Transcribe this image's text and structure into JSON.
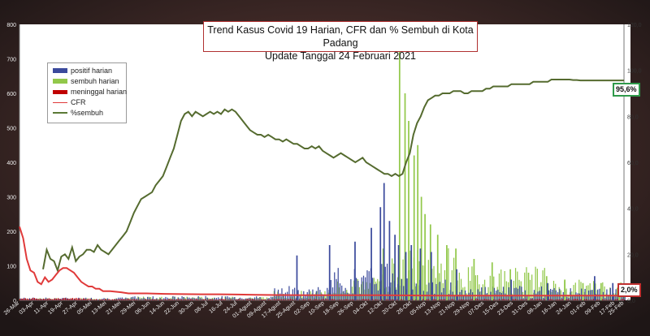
{
  "title": {
    "line1": "Trend Kasus Covid 19 Harian, CFR dan % Sembuh di Kota Padang",
    "line2": "Update Tanggal 24 Februari 2021"
  },
  "legend": [
    {
      "label": "positif harian",
      "color": "#3b4a9c"
    },
    {
      "label": "sembuh harian",
      "color": "#92c84a"
    },
    {
      "label": "meninggal harian",
      "color": "#c00000"
    },
    {
      "label": "CFR",
      "color": "#e03a3a"
    },
    {
      "label": "%sembuh",
      "color": "#5b7a36"
    }
  ],
  "callouts": {
    "sembuh_last": "95,6%",
    "cfr_last": "2,0%"
  },
  "colors": {
    "positif": "#3b4a9c",
    "sembuh": "#92c84a",
    "meninggal": "#c00000",
    "cfr": "#e03a3a",
    "pct_sembuh": "#556b2f",
    "callout_sembuh_border": "#2f9a4a",
    "callout_cfr_border": "#c03030"
  },
  "chart_data": {
    "type": "bar",
    "title": "Trend Kasus Covid 19 Harian, CFR dan % Sembuh di Kota Padang",
    "subtitle": "Update Tanggal 24 Februari 2021",
    "x_tick_labels": [
      "26-Mar",
      "03-Apr",
      "11-Apr",
      "19-Apr",
      "27-Apr",
      "05-Mei",
      "13-Mei",
      "21-Mei",
      "29-Mei",
      "06-Jun",
      "14-Jun",
      "22-Jun",
      "30-Jun",
      "08-Jul",
      "16-Jul",
      "24-Jul",
      "01-Agust",
      "09-Agust",
      "17-Agust",
      "25-Agust",
      "02-Sep",
      "10-Sep",
      "18-Sep",
      "26-Sep",
      "04-Okt",
      "12-Okt",
      "20-Okt",
      "28-Okt",
      "05-Nop",
      "13-Nop",
      "21-Nop",
      "29-Nop",
      "07-Des",
      "15-Des",
      "23-Des",
      "31-Des",
      "08-Jan",
      "16-Jan",
      "24-Jan",
      "01-Feb",
      "09-Feb",
      "17-Feb",
      "25-Feb"
    ],
    "y_left": {
      "min": 0,
      "max": 800,
      "ticks": [
        0,
        100,
        200,
        300,
        400,
        500,
        600,
        700,
        800
      ]
    },
    "y_right": {
      "min": 0,
      "max": 120,
      "ticks": [
        "0,0",
        "20,0",
        "40,0",
        "60,0",
        "80,0",
        "100,0",
        "120,0"
      ]
    },
    "grid": false,
    "legend_position": "top-left",
    "pct_sembuh_series": {
      "name": "%sembuh",
      "axis": "right",
      "points": [
        [
          13,
          13.5
        ],
        [
          15,
          22
        ],
        [
          17,
          18
        ],
        [
          19,
          17
        ],
        [
          21,
          13
        ],
        [
          23,
          19
        ],
        [
          25,
          20
        ],
        [
          27,
          18
        ],
        [
          29,
          23
        ],
        [
          31,
          17
        ],
        [
          33,
          19
        ],
        [
          35,
          20
        ],
        [
          37,
          22
        ],
        [
          39,
          22
        ],
        [
          41,
          21
        ],
        [
          43,
          24
        ],
        [
          45,
          22
        ],
        [
          47,
          21
        ],
        [
          49,
          20
        ],
        [
          51,
          22
        ],
        [
          53,
          24
        ],
        [
          55,
          26
        ],
        [
          57,
          28
        ],
        [
          59,
          30
        ],
        [
          61,
          34
        ],
        [
          63,
          38
        ],
        [
          65,
          41
        ],
        [
          67,
          44
        ],
        [
          69,
          45
        ],
        [
          71,
          46
        ],
        [
          73,
          47
        ],
        [
          75,
          50
        ],
        [
          77,
          52
        ],
        [
          79,
          54
        ],
        [
          81,
          58
        ],
        [
          83,
          62
        ],
        [
          85,
          66
        ],
        [
          87,
          72
        ],
        [
          89,
          78
        ],
        [
          91,
          81
        ],
        [
          93,
          82
        ],
        [
          95,
          80
        ],
        [
          97,
          82
        ],
        [
          99,
          81
        ],
        [
          101,
          80
        ],
        [
          103,
          81
        ],
        [
          105,
          82
        ],
        [
          107,
          81
        ],
        [
          109,
          82
        ],
        [
          111,
          81
        ],
        [
          113,
          83
        ],
        [
          115,
          82
        ],
        [
          117,
          83
        ],
        [
          119,
          82
        ],
        [
          121,
          80
        ],
        [
          123,
          78
        ],
        [
          125,
          76
        ],
        [
          127,
          74
        ],
        [
          129,
          73
        ],
        [
          131,
          72
        ],
        [
          133,
          72
        ],
        [
          135,
          71
        ],
        [
          137,
          72
        ],
        [
          139,
          71
        ],
        [
          141,
          70
        ],
        [
          143,
          70
        ],
        [
          145,
          69
        ],
        [
          147,
          70
        ],
        [
          149,
          69
        ],
        [
          151,
          68
        ],
        [
          153,
          68
        ],
        [
          155,
          67
        ],
        [
          157,
          66
        ],
        [
          159,
          66
        ],
        [
          161,
          67
        ],
        [
          163,
          66
        ],
        [
          165,
          67
        ],
        [
          167,
          65
        ],
        [
          169,
          64
        ],
        [
          171,
          63
        ],
        [
          173,
          62
        ],
        [
          175,
          63
        ],
        [
          177,
          64
        ],
        [
          179,
          63
        ],
        [
          181,
          62
        ],
        [
          183,
          61
        ],
        [
          185,
          60
        ],
        [
          187,
          61
        ],
        [
          189,
          62
        ],
        [
          191,
          60
        ],
        [
          193,
          59
        ],
        [
          195,
          58
        ],
        [
          197,
          57
        ],
        [
          199,
          56
        ],
        [
          201,
          55
        ],
        [
          203,
          55
        ],
        [
          205,
          54
        ],
        [
          207,
          55
        ],
        [
          209,
          54
        ],
        [
          211,
          55
        ],
        [
          213,
          60
        ],
        [
          215,
          64
        ],
        [
          217,
          72
        ],
        [
          219,
          77
        ],
        [
          221,
          80
        ],
        [
          223,
          84
        ],
        [
          225,
          87
        ],
        [
          227,
          88
        ],
        [
          229,
          89
        ],
        [
          231,
          89
        ],
        [
          233,
          90
        ],
        [
          235,
          90
        ],
        [
          237,
          90
        ],
        [
          239,
          91
        ],
        [
          241,
          91
        ],
        [
          243,
          91
        ],
        [
          245,
          90
        ],
        [
          247,
          90
        ],
        [
          249,
          91
        ],
        [
          251,
          91
        ],
        [
          253,
          91
        ],
        [
          255,
          91
        ],
        [
          257,
          92
        ],
        [
          259,
          92
        ],
        [
          261,
          93
        ],
        [
          263,
          93
        ],
        [
          265,
          93
        ],
        [
          267,
          93
        ],
        [
          269,
          93
        ],
        [
          271,
          94
        ],
        [
          273,
          94
        ],
        [
          275,
          94
        ],
        [
          277,
          94
        ],
        [
          279,
          94
        ],
        [
          281,
          94
        ],
        [
          283,
          95
        ],
        [
          285,
          95
        ],
        [
          287,
          95
        ],
        [
          289,
          95
        ],
        [
          291,
          95
        ],
        [
          293,
          96
        ],
        [
          295,
          96
        ],
        [
          297,
          96
        ],
        [
          299,
          96
        ],
        [
          301,
          96
        ],
        [
          303,
          96
        ],
        [
          305,
          95.8
        ],
        [
          307,
          95.8
        ],
        [
          309,
          95.6
        ],
        [
          311,
          95.6
        ],
        [
          313,
          95.6
        ],
        [
          315,
          95.6
        ],
        [
          317,
          95.6
        ],
        [
          319,
          95.6
        ],
        [
          321,
          95.6
        ],
        [
          323,
          95.6
        ],
        [
          325,
          95.6
        ],
        [
          327,
          95.6
        ],
        [
          329,
          95.6
        ],
        [
          331,
          95.6
        ],
        [
          333,
          95.6
        ]
      ]
    },
    "cfr_series": {
      "name": "CFR",
      "axis": "right",
      "points": [
        [
          0,
          32
        ],
        [
          2,
          27
        ],
        [
          4,
          18
        ],
        [
          6,
          13
        ],
        [
          8,
          12
        ],
        [
          10,
          8
        ],
        [
          12,
          7
        ],
        [
          14,
          10
        ],
        [
          16,
          8
        ],
        [
          18,
          9
        ],
        [
          20,
          11
        ],
        [
          22,
          13
        ],
        [
          24,
          14
        ],
        [
          26,
          14
        ],
        [
          28,
          13
        ],
        [
          30,
          12
        ],
        [
          32,
          10
        ],
        [
          34,
          8
        ],
        [
          36,
          7
        ],
        [
          38,
          6
        ],
        [
          40,
          6
        ],
        [
          42,
          5
        ],
        [
          44,
          5
        ],
        [
          46,
          4
        ],
        [
          50,
          4
        ],
        [
          56,
          3.5
        ],
        [
          60,
          3
        ],
        [
          70,
          3
        ],
        [
          80,
          2.8
        ],
        [
          90,
          2.7
        ],
        [
          100,
          2.6
        ],
        [
          110,
          2.6
        ],
        [
          120,
          2.5
        ],
        [
          130,
          2.4
        ],
        [
          140,
          2.3
        ],
        [
          160,
          2.2
        ],
        [
          180,
          2.2
        ],
        [
          200,
          2.2
        ],
        [
          220,
          2.1
        ],
        [
          240,
          2.0
        ],
        [
          260,
          2.0
        ],
        [
          280,
          2.0
        ],
        [
          300,
          2.0
        ],
        [
          320,
          2.0
        ],
        [
          333,
          2.0
        ]
      ]
    },
    "positif_highlights": [
      [
        152,
        130
      ],
      [
        170,
        160
      ],
      [
        184,
        170
      ],
      [
        193,
        210
      ],
      [
        198,
        270
      ],
      [
        200,
        340
      ],
      [
        203,
        230
      ],
      [
        206,
        190
      ],
      [
        208,
        160
      ],
      [
        212,
        140
      ],
      [
        215,
        160
      ],
      [
        220,
        150
      ],
      [
        226,
        140
      ],
      [
        240,
        90
      ],
      [
        270,
        60
      ],
      [
        290,
        50
      ],
      [
        316,
        70
      ],
      [
        326,
        50
      ]
    ],
    "sembuh_highlights": [
      [
        200,
        150
      ],
      [
        209,
        740
      ],
      [
        212,
        600
      ],
      [
        214,
        520
      ],
      [
        217,
        420
      ],
      [
        219,
        450
      ],
      [
        221,
        300
      ],
      [
        223,
        250
      ],
      [
        226,
        220
      ],
      [
        230,
        190
      ],
      [
        235,
        160
      ],
      [
        240,
        150
      ],
      [
        250,
        120
      ],
      [
        260,
        110
      ],
      [
        270,
        90
      ],
      [
        280,
        80
      ],
      [
        290,
        70
      ],
      [
        300,
        60
      ],
      [
        310,
        50
      ],
      [
        320,
        50
      ],
      [
        330,
        50
      ]
    ]
  }
}
